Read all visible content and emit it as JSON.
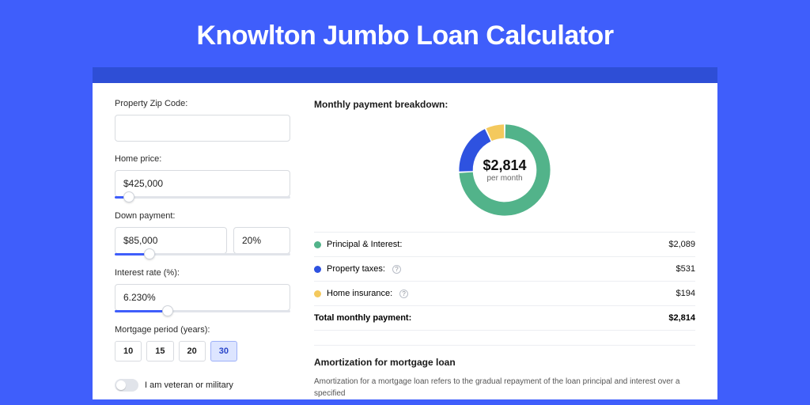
{
  "page": {
    "title": "Knowlton Jumbo Loan Calculator",
    "background_color": "#3f5efb",
    "card_border_top_color": "#2e4ed6"
  },
  "form": {
    "zip": {
      "label": "Property Zip Code:",
      "value": ""
    },
    "home_price": {
      "label": "Home price:",
      "value": "$425,000",
      "slider_pct": 8
    },
    "down_payment": {
      "label": "Down payment:",
      "value": "$85,000",
      "pct_value": "20%",
      "slider_pct": 20
    },
    "interest_rate": {
      "label": "Interest rate (%):",
      "value": "6.230%",
      "slider_pct": 30
    },
    "mortgage_period": {
      "label": "Mortgage period (years):",
      "options": [
        "10",
        "15",
        "20",
        "30"
      ],
      "selected": "30"
    },
    "veteran": {
      "label": "I am veteran or military",
      "on": false
    }
  },
  "breakdown": {
    "title": "Monthly payment breakdown:",
    "donut": {
      "amount": "$2,814",
      "sub": "per month",
      "slices": [
        {
          "key": "principal_interest",
          "value": 2089,
          "color": "#52b38a"
        },
        {
          "key": "property_taxes",
          "value": 531,
          "color": "#2e52e0"
        },
        {
          "key": "home_insurance",
          "value": 194,
          "color": "#f4c95d"
        }
      ],
      "thickness_ratio": 0.3
    },
    "items": [
      {
        "label": "Principal & Interest:",
        "value": "$2,089",
        "color": "#52b38a",
        "info": false
      },
      {
        "label": "Property taxes:",
        "value": "$531",
        "color": "#2e52e0",
        "info": true
      },
      {
        "label": "Home insurance:",
        "value": "$194",
        "color": "#f4c95d",
        "info": true
      }
    ],
    "total": {
      "label": "Total monthly payment:",
      "value": "$2,814"
    }
  },
  "amortization": {
    "title": "Amortization for mortgage loan",
    "text": "Amortization for a mortgage loan refers to the gradual repayment of the loan principal and interest over a specified"
  }
}
